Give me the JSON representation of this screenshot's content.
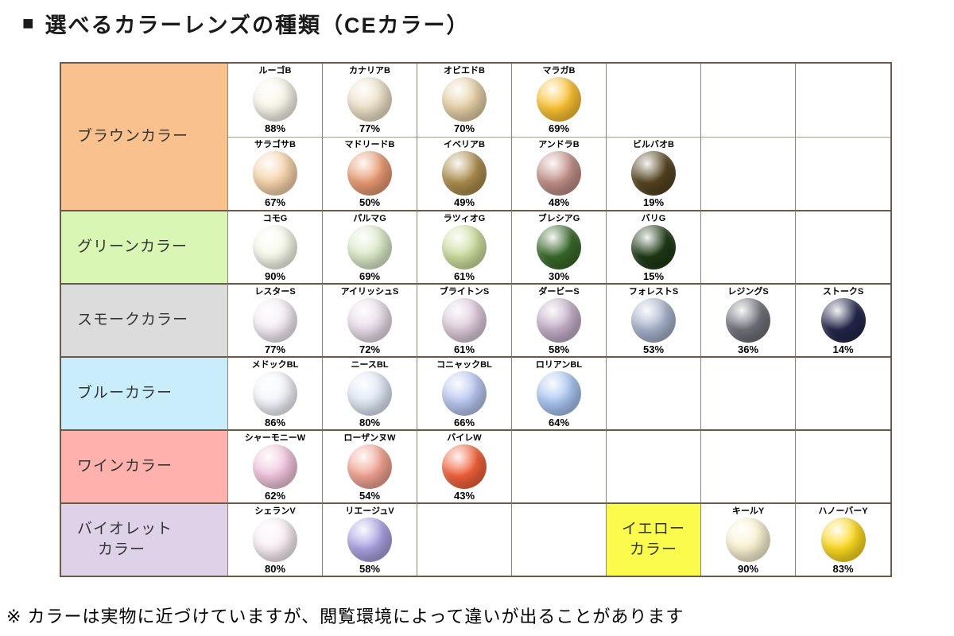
{
  "title": {
    "bullet": "■",
    "text": "選べるカラーレンズの種類（CEカラー）"
  },
  "footnote": "※ カラーは実物に近づけていますが、閲覧環境によって違いが出ることがあります",
  "table": {
    "rows": 7,
    "cols": 7,
    "groups": [
      {
        "id": "brown",
        "label_lines": [
          "ブラウンカラー"
        ],
        "bg": "#F9C18D",
        "row_start": 1,
        "row_span": 2
      },
      {
        "id": "green",
        "label_lines": [
          "グリーンカラー"
        ],
        "bg": "#D9F6B5",
        "row_start": 3,
        "row_span": 1
      },
      {
        "id": "smoke",
        "label_lines": [
          "スモークカラー"
        ],
        "bg": "#DCDCDC",
        "row_start": 4,
        "row_span": 1
      },
      {
        "id": "blue",
        "label_lines": [
          "ブルーカラー"
        ],
        "bg": "#C9EDFA",
        "row_start": 5,
        "row_span": 1
      },
      {
        "id": "wine",
        "label_lines": [
          "ワインカラー"
        ],
        "bg": "#FFB2AD",
        "row_start": 6,
        "row_span": 1
      },
      {
        "id": "violet",
        "label_lines": [
          "バイオレット",
          "カラー"
        ],
        "bg": "#DED2E9",
        "row_start": 7,
        "row_span": 1
      }
    ],
    "inline_labels": [
      {
        "id": "yellow",
        "label_lines": [
          "イエロー",
          "カラー"
        ],
        "bg": "#FBFB4D",
        "row": 7,
        "col": 5
      }
    ],
    "lenses": [
      {
        "row": 1,
        "col": 1,
        "name": "ルーゴB",
        "pct": "88%",
        "color": "#F8F5E9"
      },
      {
        "row": 1,
        "col": 2,
        "name": "カナリアB",
        "pct": "77%",
        "color": "#EEE2C9"
      },
      {
        "row": 1,
        "col": 3,
        "name": "オビエドB",
        "pct": "70%",
        "color": "#E6D0A6"
      },
      {
        "row": 1,
        "col": 4,
        "name": "マラガB",
        "pct": "69%",
        "color": "#FBC232"
      },
      {
        "row": 2,
        "col": 1,
        "name": "サラゴサB",
        "pct": "67%",
        "color": "#F7D5AC"
      },
      {
        "row": 2,
        "col": 2,
        "name": "マドリードB",
        "pct": "50%",
        "color": "#E99B72"
      },
      {
        "row": 2,
        "col": 3,
        "name": "イベリアB",
        "pct": "49%",
        "color": "#AC8D4C"
      },
      {
        "row": 2,
        "col": 4,
        "name": "アンドラB",
        "pct": "48%",
        "color": "#C28F88"
      },
      {
        "row": 2,
        "col": 5,
        "name": "ビルバオB",
        "pct": "19%",
        "color": "#54431F"
      },
      {
        "row": 3,
        "col": 1,
        "name": "コモG",
        "pct": "90%",
        "color": "#F7FAEC"
      },
      {
        "row": 3,
        "col": 2,
        "name": "パルマG",
        "pct": "69%",
        "color": "#DDEBCB"
      },
      {
        "row": 3,
        "col": 3,
        "name": "ラツィオG",
        "pct": "61%",
        "color": "#CEDFA0"
      },
      {
        "row": 3,
        "col": 4,
        "name": "ブレシアG",
        "pct": "30%",
        "color": "#39682A"
      },
      {
        "row": 3,
        "col": 5,
        "name": "バリG",
        "pct": "15%",
        "color": "#1E3A16"
      },
      {
        "row": 4,
        "col": 1,
        "name": "レスターS",
        "pct": "77%",
        "color": "#F5EEF5"
      },
      {
        "row": 4,
        "col": 2,
        "name": "アイリッシュS",
        "pct": "72%",
        "color": "#EADEEA"
      },
      {
        "row": 4,
        "col": 3,
        "name": "ブライトンS",
        "pct": "61%",
        "color": "#DECBDB"
      },
      {
        "row": 4,
        "col": 4,
        "name": "ダービーS",
        "pct": "58%",
        "color": "#C4AFC9"
      },
      {
        "row": 4,
        "col": 5,
        "name": "フォレストS",
        "pct": "53%",
        "color": "#A7B2CB"
      },
      {
        "row": 4,
        "col": 6,
        "name": "レジングS",
        "pct": "36%",
        "color": "#6F7179"
      },
      {
        "row": 4,
        "col": 7,
        "name": "ストークS",
        "pct": "14%",
        "color": "#23264A"
      },
      {
        "row": 5,
        "col": 1,
        "name": "メドックBL",
        "pct": "86%",
        "color": "#F3F6FB"
      },
      {
        "row": 5,
        "col": 2,
        "name": "ニースBL",
        "pct": "80%",
        "color": "#E0E9F6"
      },
      {
        "row": 5,
        "col": 3,
        "name": "コニャックBL",
        "pct": "66%",
        "color": "#B9C7F1"
      },
      {
        "row": 5,
        "col": 4,
        "name": "ロリアンBL",
        "pct": "64%",
        "color": "#A9C5F1"
      },
      {
        "row": 6,
        "col": 1,
        "name": "シャーモニーW",
        "pct": "62%",
        "color": "#F2C6DD"
      },
      {
        "row": 6,
        "col": 2,
        "name": "ローザンヌW",
        "pct": "54%",
        "color": "#F2A392"
      },
      {
        "row": 6,
        "col": 3,
        "name": "バイレW",
        "pct": "43%",
        "color": "#F2613A"
      },
      {
        "row": 7,
        "col": 1,
        "name": "シェランV",
        "pct": "80%",
        "color": "#F9EFF5"
      },
      {
        "row": 7,
        "col": 2,
        "name": "リエージュV",
        "pct": "58%",
        "color": "#A9A2E2"
      },
      {
        "row": 7,
        "col": 6,
        "name": "キールY",
        "pct": "90%",
        "color": "#FAF3D2"
      },
      {
        "row": 7,
        "col": 7,
        "name": "ハノーバーY",
        "pct": "83%",
        "color": "#FCD91F"
      }
    ]
  }
}
